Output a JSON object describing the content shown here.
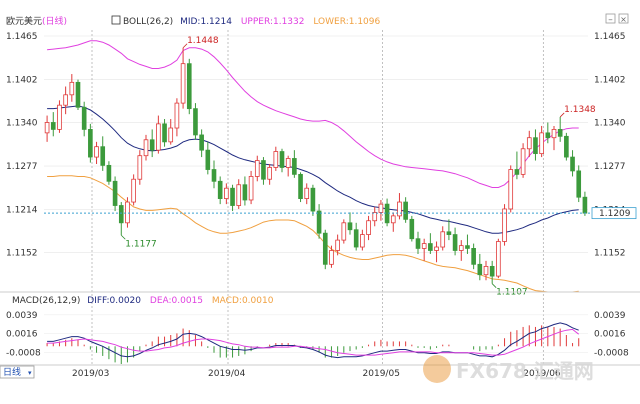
{
  "header": {
    "symbol": "欧元美元",
    "period_tag": "(日线)",
    "indicator": "BOLL(26,2)",
    "mid_label": "MID:",
    "mid_value": "1.1214",
    "upper_label": "UPPER:",
    "upper_value": "1.1332",
    "lower_label": "LOWER:",
    "lower_value": "1.1096"
  },
  "macd_header": {
    "indicator": "MACD(26,12,9)",
    "diff_label": "DIFF:",
    "diff_value": "0.0020",
    "dea_label": "DEA:",
    "dea_value": "0.0015",
    "macd_label": "MACD:",
    "macd_value": "0.0010"
  },
  "period_tab": "日线",
  "watermark": "FX678 汇通网",
  "colors": {
    "up": "#e03a3a",
    "down": "#3c9a3c",
    "mid": "#1f2a80",
    "upper": "#e040e0",
    "lower": "#f0a040",
    "current_line": "#3aa0d0",
    "dea": "#e040e0",
    "diff": "#1f2a80"
  },
  "chart_data": {
    "type": "candlestick",
    "price_axis": {
      "ticks": [
        "1.1465",
        "1.1402",
        "1.1340",
        "1.1277",
        "1.1214",
        "1.1152"
      ],
      "tick_values": [
        1.1465,
        1.1402,
        1.134,
        1.1277,
        1.1214,
        1.1152
      ],
      "ylim": [
        1.1095,
        1.1478
      ]
    },
    "x_axis": {
      "labels": [
        "2019/03",
        "2019/04",
        "2019/05",
        "2019/06"
      ],
      "label_index": [
        5,
        27,
        52,
        78
      ]
    },
    "current_price": "1.1209",
    "annotations": [
      {
        "text": "1.1448",
        "index": 22,
        "type": "high"
      },
      {
        "text": "1.1177",
        "index": 12,
        "type": "low"
      },
      {
        "text": "1.1107",
        "index": 72,
        "type": "low"
      },
      {
        "text": "1.1348",
        "index": 83,
        "type": "high"
      }
    ],
    "candles": [
      [
        1.1325,
        1.135,
        1.1312,
        1.134
      ],
      [
        1.134,
        1.1355,
        1.132,
        1.133
      ],
      [
        1.133,
        1.1372,
        1.1325,
        1.1365
      ],
      [
        1.1365,
        1.1392,
        1.1352,
        1.138
      ],
      [
        1.138,
        1.141,
        1.137,
        1.1398
      ],
      [
        1.1398,
        1.1402,
        1.1358,
        1.1362
      ],
      [
        1.1362,
        1.137,
        1.132,
        1.133
      ],
      [
        1.133,
        1.1338,
        1.1282,
        1.129
      ],
      [
        1.129,
        1.1312,
        1.128,
        1.1305
      ],
      [
        1.1305,
        1.132,
        1.127,
        1.1278
      ],
      [
        1.1278,
        1.1284,
        1.125,
        1.1255
      ],
      [
        1.1255,
        1.1262,
        1.1212,
        1.122
      ],
      [
        1.122,
        1.1225,
        1.1177,
        1.1195
      ],
      [
        1.1195,
        1.1232,
        1.1188,
        1.1225
      ],
      [
        1.1225,
        1.1265,
        1.122,
        1.1258
      ],
      [
        1.1258,
        1.13,
        1.125,
        1.1292
      ],
      [
        1.1292,
        1.1322,
        1.1285,
        1.1315
      ],
      [
        1.1315,
        1.133,
        1.129,
        1.13
      ],
      [
        1.13,
        1.135,
        1.1295,
        1.1338
      ],
      [
        1.1338,
        1.1345,
        1.1305,
        1.1312
      ],
      [
        1.1312,
        1.1345,
        1.1308,
        1.1332
      ],
      [
        1.1332,
        1.1375,
        1.132,
        1.1368
      ],
      [
        1.1368,
        1.1448,
        1.136,
        1.1425
      ],
      [
        1.1425,
        1.1432,
        1.1352,
        1.136
      ],
      [
        1.136,
        1.1368,
        1.1315,
        1.1322
      ],
      [
        1.1322,
        1.133,
        1.129,
        1.13
      ],
      [
        1.13,
        1.1312,
        1.1265,
        1.1272
      ],
      [
        1.1272,
        1.1285,
        1.1245,
        1.1255
      ],
      [
        1.1255,
        1.1262,
        1.1222,
        1.123
      ],
      [
        1.123,
        1.1252,
        1.1222,
        1.1245
      ],
      [
        1.1245,
        1.125,
        1.1212,
        1.122
      ],
      [
        1.122,
        1.1258,
        1.1215,
        1.125
      ],
      [
        1.125,
        1.1262,
        1.122,
        1.1228
      ],
      [
        1.1228,
        1.127,
        1.1222,
        1.1262
      ],
      [
        1.1262,
        1.1292,
        1.1255,
        1.1285
      ],
      [
        1.1285,
        1.129,
        1.125,
        1.1258
      ],
      [
        1.1258,
        1.128,
        1.125,
        1.1275
      ],
      [
        1.1275,
        1.1305,
        1.127,
        1.1298
      ],
      [
        1.1298,
        1.1302,
        1.1268,
        1.1275
      ],
      [
        1.1275,
        1.1292,
        1.1262,
        1.1288
      ],
      [
        1.1288,
        1.13,
        1.126,
        1.1265
      ],
      [
        1.1265,
        1.1268,
        1.1225,
        1.123
      ],
      [
        1.123,
        1.1252,
        1.1222,
        1.1245
      ],
      [
        1.1245,
        1.125,
        1.1205,
        1.1212
      ],
      [
        1.1212,
        1.1222,
        1.1172,
        1.118
      ],
      [
        1.118,
        1.1185,
        1.1128,
        1.1135
      ],
      [
        1.1135,
        1.1162,
        1.113,
        1.1155
      ],
      [
        1.1155,
        1.1178,
        1.1148,
        1.117
      ],
      [
        1.117,
        1.12,
        1.1165,
        1.1195
      ],
      [
        1.1195,
        1.121,
        1.1178,
        1.1185
      ],
      [
        1.1185,
        1.1195,
        1.1155,
        1.116
      ],
      [
        1.116,
        1.1185,
        1.1155,
        1.1178
      ],
      [
        1.1178,
        1.1205,
        1.117,
        1.1198
      ],
      [
        1.1198,
        1.1218,
        1.119,
        1.121
      ],
      [
        1.121,
        1.1228,
        1.1198,
        1.1222
      ],
      [
        1.1222,
        1.123,
        1.119,
        1.1195
      ],
      [
        1.1195,
        1.121,
        1.1182,
        1.1205
      ],
      [
        1.1205,
        1.1238,
        1.12,
        1.1225
      ],
      [
        1.1225,
        1.1232,
        1.1195,
        1.12
      ],
      [
        1.12,
        1.1205,
        1.1168,
        1.1172
      ],
      [
        1.1172,
        1.1182,
        1.115,
        1.1158
      ],
      [
        1.1158,
        1.1172,
        1.114,
        1.1165
      ],
      [
        1.1165,
        1.118,
        1.115,
        1.1155
      ],
      [
        1.1155,
        1.1168,
        1.1138,
        1.116
      ],
      [
        1.116,
        1.119,
        1.1155,
        1.1182
      ],
      [
        1.1182,
        1.12,
        1.117,
        1.1178
      ],
      [
        1.1178,
        1.1188,
        1.1148,
        1.1155
      ],
      [
        1.1155,
        1.117,
        1.114,
        1.1162
      ],
      [
        1.1162,
        1.1178,
        1.115,
        1.1158
      ],
      [
        1.1158,
        1.1165,
        1.1128,
        1.1135
      ],
      [
        1.1135,
        1.115,
        1.1112,
        1.112
      ],
      [
        1.112,
        1.114,
        1.1112,
        1.1132
      ],
      [
        1.1132,
        1.114,
        1.1107,
        1.1118
      ],
      [
        1.1118,
        1.1172,
        1.1115,
        1.1168
      ],
      [
        1.1168,
        1.1222,
        1.1162,
        1.1215
      ],
      [
        1.1215,
        1.1278,
        1.121,
        1.1272
      ],
      [
        1.1272,
        1.1298,
        1.1258,
        1.1265
      ],
      [
        1.1265,
        1.131,
        1.126,
        1.1302
      ],
      [
        1.1302,
        1.1328,
        1.129,
        1.1318
      ],
      [
        1.1318,
        1.133,
        1.1285,
        1.1295
      ],
      [
        1.1295,
        1.1335,
        1.129,
        1.1325
      ],
      [
        1.1325,
        1.134,
        1.131,
        1.1318
      ],
      [
        1.1318,
        1.1335,
        1.13,
        1.133
      ],
      [
        1.133,
        1.1348,
        1.1312,
        1.132
      ],
      [
        1.132,
        1.1325,
        1.1285,
        1.129
      ],
      [
        1.129,
        1.13,
        1.1262,
        1.127
      ],
      [
        1.127,
        1.1278,
        1.1225,
        1.1232
      ],
      [
        1.1232,
        1.124,
        1.1205,
        1.1209
      ]
    ],
    "bollinger": {
      "mid": [
        1.136,
        1.136,
        1.1361,
        1.1362,
        1.1363,
        1.1364,
        1.1362,
        1.1358,
        1.1352,
        1.1345,
        1.1337,
        1.1328,
        1.1318,
        1.131,
        1.1305,
        1.1302,
        1.13,
        1.1299,
        1.13,
        1.1301,
        1.1303,
        1.1306,
        1.1312,
        1.1315,
        1.1316,
        1.1315,
        1.1312,
        1.1308,
        1.1303,
        1.1298,
        1.1293,
        1.1289,
        1.1286,
        1.1284,
        1.1282,
        1.128,
        1.1279,
        1.1278,
        1.1277,
        1.1276,
        1.1275,
        1.1272,
        1.1269,
        1.1265,
        1.126,
        1.1253,
        1.1247,
        1.1241,
        1.1236,
        1.1232,
        1.1227,
        1.1223,
        1.122,
        1.1218,
        1.1217,
        1.1215,
        1.1214,
        1.1213,
        1.1212,
        1.121,
        1.1208,
        1.1205,
        1.1202,
        1.12,
        1.1198,
        1.1197,
        1.1195,
        1.1193,
        1.1191,
        1.1188,
        1.1185,
        1.1182,
        1.118,
        1.118,
        1.1181,
        1.1183,
        1.1185,
        1.1188,
        1.1192,
        1.1195,
        1.1199,
        1.1202,
        1.1206,
        1.1209,
        1.1211,
        1.1213,
        1.1214
      ],
      "upper": [
        1.1445,
        1.1446,
        1.1447,
        1.1448,
        1.145,
        1.1452,
        1.1455,
        1.1458,
        1.1458,
        1.1456,
        1.1452,
        1.1446,
        1.144,
        1.1432,
        1.1428,
        1.1424,
        1.1421,
        1.1418,
        1.1418,
        1.142,
        1.1424,
        1.143,
        1.1444,
        1.1448,
        1.1448,
        1.1446,
        1.1442,
        1.1435,
        1.1426,
        1.1416,
        1.1405,
        1.1395,
        1.1385,
        1.1377,
        1.137,
        1.1365,
        1.1361,
        1.1357,
        1.1354,
        1.1351,
        1.1348,
        1.1345,
        1.1343,
        1.1342,
        1.1342,
        1.1343,
        1.134,
        1.1335,
        1.1328,
        1.132,
        1.1312,
        1.1305,
        1.1298,
        1.1292,
        1.1287,
        1.1283,
        1.128,
        1.1278,
        1.1276,
        1.1275,
        1.1274,
        1.1273,
        1.1272,
        1.1271,
        1.127,
        1.1268,
        1.1266,
        1.1263,
        1.126,
        1.1256,
        1.1252,
        1.1249,
        1.1246,
        1.1246,
        1.125,
        1.1258,
        1.1268,
        1.128,
        1.1292,
        1.1302,
        1.131,
        1.1317,
        1.1323,
        1.1328,
        1.1331,
        1.1332,
        1.1332
      ],
      "lower": [
        1.1262,
        1.1262,
        1.1263,
        1.1263,
        1.1263,
        1.1262,
        1.1262,
        1.126,
        1.1256,
        1.1252,
        1.1246,
        1.124,
        1.1232,
        1.1225,
        1.1218,
        1.1215,
        1.1213,
        1.1213,
        1.1214,
        1.1215,
        1.1216,
        1.1215,
        1.1208,
        1.1202,
        1.1195,
        1.119,
        1.1185,
        1.1182,
        1.118,
        1.118,
        1.1181,
        1.1183,
        1.1185,
        1.1188,
        1.1192,
        1.1196,
        1.1198,
        1.1199,
        1.1199,
        1.1199,
        1.1198,
        1.1194,
        1.119,
        1.1184,
        1.1175,
        1.1165,
        1.1157,
        1.1152,
        1.1148,
        1.1145,
        1.1143,
        1.1142,
        1.1142,
        1.1144,
        1.1146,
        1.1148,
        1.1149,
        1.1149,
        1.1148,
        1.1146,
        1.1143,
        1.114,
        1.1137,
        1.1134,
        1.1132,
        1.1131,
        1.113,
        1.1128,
        1.1126,
        1.1123,
        1.112,
        1.1117,
        1.1114,
        1.1113,
        1.1112,
        1.111,
        1.1108,
        1.1104,
        1.11,
        1.1097,
        1.1096,
        1.1095,
        1.1095,
        1.1095,
        1.1095,
        1.1095,
        1.1096
      ]
    },
    "macd": {
      "axis_ticks": [
        "0.0039",
        "0.0016",
        "-0.0008"
      ],
      "axis_values": [
        0.0039,
        0.0016,
        -0.0008
      ],
      "ylim": [
        -0.0022,
        0.005
      ],
      "diff": [
        0.0006,
        0.0006,
        0.0008,
        0.001,
        0.0012,
        0.0012,
        0.001,
        0.0006,
        0.0003,
        0.0,
        -0.0004,
        -0.0008,
        -0.0012,
        -0.0013,
        -0.0012,
        -0.0009,
        -0.0005,
        -0.0002,
        0.0002,
        0.0004,
        0.0006,
        0.0009,
        0.0015,
        0.0016,
        0.0015,
        0.0012,
        0.0008,
        0.0004,
        0.0,
        -0.0002,
        -0.0004,
        -0.0004,
        -0.0005,
        -0.0004,
        -0.0002,
        -0.0002,
        -0.0001,
        0.0001,
        0.0001,
        0.0001,
        0.0001,
        -0.0001,
        -0.0002,
        -0.0004,
        -0.0007,
        -0.0011,
        -0.0013,
        -0.0014,
        -0.0013,
        -0.0013,
        -0.0013,
        -0.0012,
        -0.001,
        -0.0008,
        -0.0006,
        -0.0006,
        -0.0005,
        -0.0004,
        -0.0004,
        -0.0006,
        -0.0008,
        -0.0008,
        -0.0009,
        -0.0009,
        -0.0007,
        -0.0007,
        -0.0008,
        -0.0008,
        -0.0008,
        -0.001,
        -0.0012,
        -0.0012,
        -0.0013,
        -0.001,
        -0.0005,
        0.0002,
        0.0006,
        0.0011,
        0.0016,
        0.0018,
        0.0022,
        0.0024,
        0.0027,
        0.0029,
        0.0027,
        0.0023,
        0.002
      ],
      "dea": [
        0.0004,
        0.0004,
        0.0005,
        0.0006,
        0.0007,
        0.0008,
        0.0009,
        0.0008,
        0.0007,
        0.0006,
        0.0004,
        0.0002,
        -0.0001,
        -0.0003,
        -0.0005,
        -0.0006,
        -0.0006,
        -0.0005,
        -0.0004,
        -0.0002,
        -0.0001,
        0.0001,
        0.0004,
        0.0006,
        0.0008,
        0.0009,
        0.0009,
        0.0008,
        0.0007,
        0.0005,
        0.0003,
        0.0002,
        0.0,
        -0.0001,
        -0.0001,
        -0.0002,
        -0.0002,
        -0.0001,
        -0.0001,
        -0.0001,
        0.0,
        0.0,
        -0.0001,
        -0.0002,
        -0.0003,
        -0.0004,
        -0.0006,
        -0.0008,
        -0.0009,
        -0.001,
        -0.0011,
        -0.0011,
        -0.0011,
        -0.0011,
        -0.001,
        -0.0009,
        -0.0008,
        -0.0007,
        -0.0007,
        -0.0007,
        -0.0007,
        -0.0007,
        -0.0007,
        -0.0008,
        -0.0008,
        -0.0008,
        -0.0008,
        -0.0008,
        -0.0008,
        -0.0008,
        -0.0009,
        -0.001,
        -0.0011,
        -0.0011,
        -0.001,
        -0.0007,
        -0.0004,
        -0.0001,
        0.0003,
        0.0006,
        0.0009,
        0.0012,
        0.0015,
        0.0018,
        0.002,
        0.0021,
        0.0015
      ]
    }
  }
}
